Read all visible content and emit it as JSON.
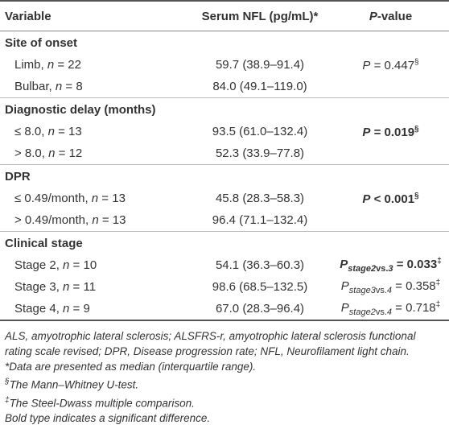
{
  "header": {
    "variable": "Variable",
    "serum": "Serum NFL (pg/mL)*",
    "p_symbol": "P",
    "p_rest": "-value"
  },
  "sections": [
    {
      "title": "Site of onset",
      "rows": [
        {
          "label": "Limb, ",
          "n": "n",
          "count": " = 22",
          "value": "59.7 (38.9–91.4)",
          "p": {
            "symbol": "P",
            "text": " = 0.447",
            "mark": "§"
          }
        },
        {
          "label": "Bulbar, ",
          "n": "n",
          "count": " = 8",
          "value": "84.0 (49.1–119.0)"
        }
      ]
    },
    {
      "title": "Diagnostic delay (months)",
      "rows": [
        {
          "label": "≤ 8.0, ",
          "n": "n",
          "count": " = 13",
          "value": "93.5 (61.0–132.4)",
          "p": {
            "symbol": "P",
            "text": " = 0.019",
            "mark": "§"
          }
        },
        {
          "label": "> 8.0, ",
          "n": "n",
          "count": " = 12",
          "value": "52.3 (33.9–77.8)"
        }
      ]
    },
    {
      "title": "DPR",
      "rows": [
        {
          "label": "≤ 0.49/month, ",
          "n": "n",
          "count": " = 13",
          "value": "45.8 (28.3–58.3)",
          "p": {
            "symbol": "P",
            "text": " < 0.001",
            "mark": "§"
          }
        },
        {
          "label": "> 0.49/month, ",
          "n": "n",
          "count": " = 13",
          "value": "96.4 (71.1–132.4)"
        }
      ]
    },
    {
      "title": "Clinical stage",
      "rows": [
        {
          "label": "Stage 2, ",
          "n": "n",
          "count": " = 10",
          "value": "54.1 (36.3–60.3)",
          "p": {
            "symbol": "P",
            "sub1": "stage2",
            "sub_vs": "vs.",
            "sub2": "3",
            "text": " = 0.033",
            "mark": "‡"
          }
        },
        {
          "label": "Stage 3, ",
          "n": "n",
          "count": " = 11",
          "value": "98.6 (68.5–132.5)",
          "p": {
            "symbol": "P",
            "sub1": "stage3",
            "sub_vs": "vs.",
            "sub2": "4",
            "text": " = 0.358",
            "mark": "‡"
          }
        },
        {
          "label": "Stage 4, ",
          "n": "n",
          "count": " = 9",
          "value": "67.0 (28.3–96.4)",
          "p": {
            "symbol": "P",
            "sub1": "stage2",
            "sub_vs": "vs.",
            "sub2": "4",
            "text": " = 0.718",
            "mark": "‡"
          }
        }
      ]
    }
  ],
  "footnotes": {
    "abbrev": "ALS, amyotrophic lateral sclerosis; ALSFRS-r, amyotrophic lateral sclerosis functional rating scale revised; DPR, Disease progression rate; NFL, Neurofilament light chain.",
    "star": "*Data are presented as median (interquartile range).",
    "mw_mark": "§",
    "mw_text": "The Mann–Whitney U-test.",
    "sd_mark": "‡",
    "sd_text": "The Steel-Dwass multiple comparison.",
    "bold": "Bold type indicates a significant difference."
  }
}
